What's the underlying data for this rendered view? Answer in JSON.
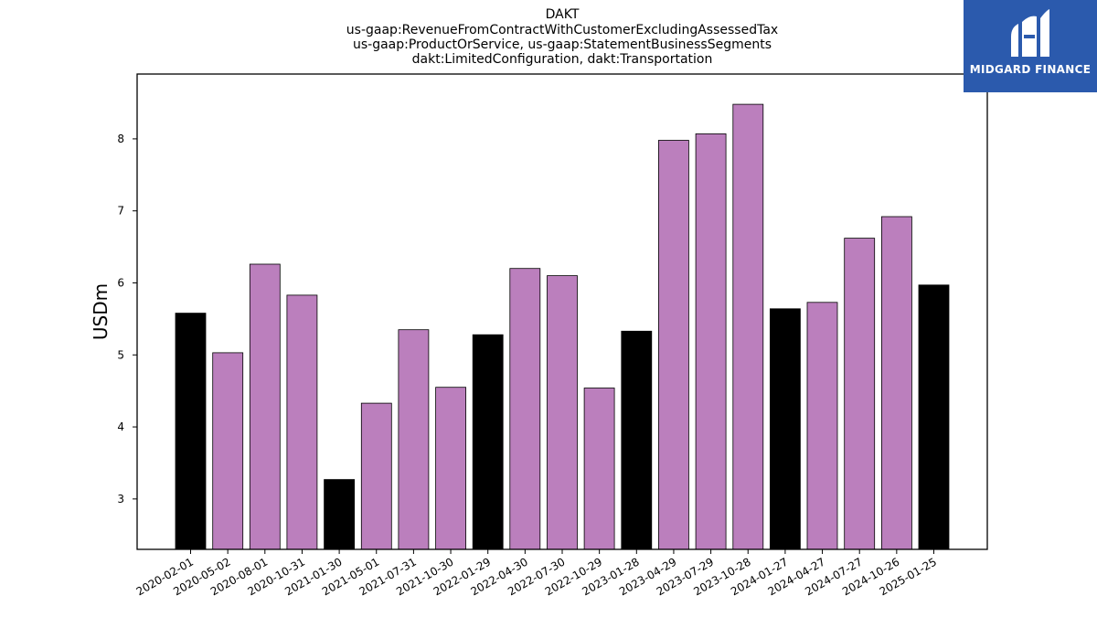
{
  "chart_data": {
    "type": "bar",
    "title": [
      "DAKT",
      "us-gaap:RevenueFromContractWithCustomerExcludingAssessedTax",
      "us-gaap:ProductOrService, us-gaap:StatementBusinessSegments",
      "dakt:LimitedConfiguration, dakt:Transportation"
    ],
    "ylabel": "USDm",
    "xlabel": "",
    "ylim": [
      2.3,
      8.9
    ],
    "yticks": [
      3,
      4,
      5,
      6,
      7,
      8
    ],
    "grid": false,
    "categories": [
      "2020-02-01",
      "2020-05-02",
      "2020-08-01",
      "2020-10-31",
      "2021-01-30",
      "2021-05-01",
      "2021-07-31",
      "2021-10-30",
      "2022-01-29",
      "2022-04-30",
      "2022-07-30",
      "2022-10-29",
      "2023-01-28",
      "2023-04-29",
      "2023-07-29",
      "2023-10-28",
      "2024-01-27",
      "2024-04-27",
      "2024-07-27",
      "2024-10-26",
      "2025-01-25"
    ],
    "values": [
      5.58,
      5.03,
      6.26,
      5.83,
      3.27,
      4.33,
      5.35,
      4.55,
      5.28,
      6.2,
      6.1,
      4.54,
      5.33,
      7.98,
      8.07,
      8.48,
      5.64,
      5.73,
      6.62,
      6.92,
      5.97
    ],
    "colors": [
      "#000000",
      "#bb7fbd",
      "#bb7fbd",
      "#bb7fbd",
      "#000000",
      "#bb7fbd",
      "#bb7fbd",
      "#bb7fbd",
      "#000000",
      "#bb7fbd",
      "#bb7fbd",
      "#bb7fbd",
      "#000000",
      "#bb7fbd",
      "#bb7fbd",
      "#bb7fbd",
      "#000000",
      "#bb7fbd",
      "#bb7fbd",
      "#bb7fbd",
      "#000000"
    ]
  },
  "logo": {
    "text": "MIDGARD FINANCE",
    "background": "#2b5aad",
    "icon": "midgard-logo-icon"
  }
}
